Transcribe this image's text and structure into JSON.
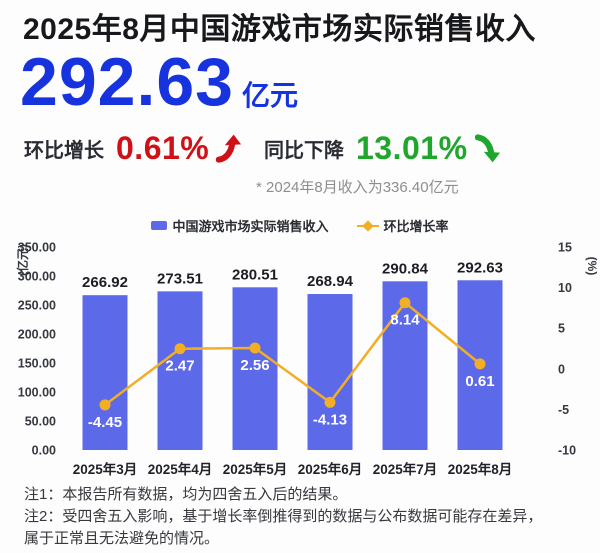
{
  "header": {
    "title": "2025年8月中国游戏市场实际销售收入",
    "revenue_value": "292.63",
    "revenue_unit": "亿元",
    "mom": {
      "label": "环比增长",
      "value": "0.61%",
      "direction": "up",
      "color": "#cf1016"
    },
    "yoy": {
      "label": "同比下降",
      "value": "13.01%",
      "direction": "down",
      "color": "#1ea72b"
    },
    "footnote": "* 2024年8月收入为336.40亿元"
  },
  "chart_data": {
    "type": "bar",
    "title": "",
    "categories": [
      "2025年3月",
      "2025年4月",
      "2025年5月",
      "2025年6月",
      "2025年7月",
      "2025年8月"
    ],
    "series": [
      {
        "name": "中国游戏市场实际销售收入",
        "type": "bar",
        "axis": "left",
        "values": [
          266.92,
          273.51,
          280.51,
          268.94,
          290.84,
          292.63
        ],
        "color": "#5c69e8"
      },
      {
        "name": "环比增长率",
        "type": "line",
        "axis": "right",
        "values": [
          -4.45,
          2.47,
          2.56,
          -4.13,
          8.14,
          0.61
        ],
        "color": "#f2ae24"
      }
    ],
    "left_axis": {
      "unit": "(亿元)",
      "min": 0,
      "max": 350,
      "ticks": [
        "350.00",
        "300.00",
        "250.00",
        "200.00",
        "150.00",
        "100.00",
        "50.00",
        "0.00"
      ]
    },
    "right_axis": {
      "unit": "(%)",
      "min": -10,
      "max": 15,
      "ticks": [
        "15",
        "10",
        "5",
        "0",
        "-5",
        "-10"
      ]
    },
    "legend_position": "top",
    "grid": false
  },
  "notes": {
    "line1": "注1：本报告所有数据，均为四舍五入后的结果。",
    "line2": "注2：受四舍五入影响，基于增长率倒推得到的数据与公布数据可能存在差异，",
    "line3": "属于正常且无法避免的情况。"
  },
  "colors": {
    "accent_blue": "#1733dd",
    "bar_blue": "#5c69e8",
    "line_amber": "#f2ae24",
    "up_red": "#cf1016",
    "down_green": "#1ea72b"
  }
}
